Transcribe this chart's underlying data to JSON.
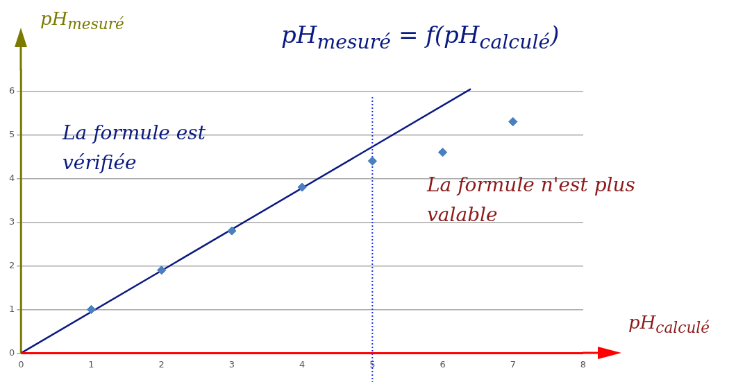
{
  "chart_data": {
    "type": "scatter",
    "title": "pH$_{mesuré}$ = f(pH$_{calculé}$)",
    "xlabel": "pH$_{calculé}$",
    "ylabel": "pH$_{mesuré}$",
    "xlim": [
      0,
      8
    ],
    "ylim": [
      0,
      6.5
    ],
    "xticks": [
      0,
      1,
      2,
      3,
      4,
      5,
      6,
      7,
      8
    ],
    "yticks": [
      0,
      1,
      2,
      3,
      4,
      5,
      6
    ],
    "grid": "y",
    "legend": false,
    "marker": "diamond",
    "series": [
      {
        "color": "#4a7fc0",
        "x": [
          1,
          2,
          3,
          4,
          5,
          6,
          7
        ],
        "values": [
          1.0,
          1.9,
          2.8,
          3.8,
          4.4,
          4.6,
          5.3
        ]
      },
      {
        "type": "line",
        "color": "#0a1a80",
        "x": [
          0,
          6.4
        ],
        "values": [
          0,
          6.05
        ],
        "marker": "none",
        "line_style": "solid"
      }
    ],
    "ref_lines": [
      {
        "axis": "x",
        "value": 5,
        "color": "#2233ee",
        "line_style": "dotted"
      }
    ],
    "annotations": [
      "La formule est vérifiée",
      "La formule n'est plus valable"
    ]
  }
}
